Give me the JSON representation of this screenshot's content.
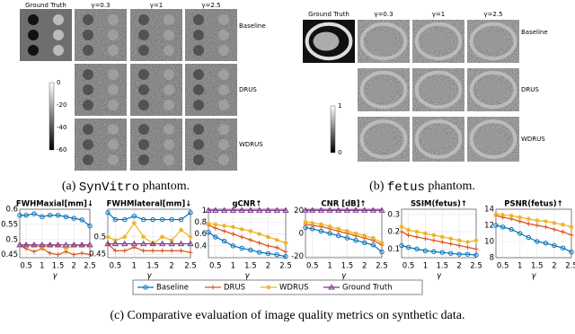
{
  "figure": {
    "panel_a": {
      "columns": [
        "Ground Truth",
        "γ=0.3",
        "γ=1",
        "γ=2.5"
      ],
      "rows": [
        "Baseline",
        "DRUS",
        "WDRUS"
      ],
      "colorbar_ticks": [
        0,
        -20,
        -40,
        -60
      ],
      "caption": {
        "label": "(a)",
        "name": "SynVitro",
        "text": "phantom."
      }
    },
    "panel_b": {
      "columns": [
        "Ground Truth",
        "γ=0.3",
        "γ=1",
        "γ=2.5"
      ],
      "rows": [
        "Baseline",
        "DRUS",
        "WDRUS"
      ],
      "colorbar_ticks": [
        1,
        0
      ],
      "caption": {
        "label": "(b)",
        "name": "fetus",
        "text": "phantom."
      }
    },
    "caption_c": "(c) Comparative evaluation of image quality metrics on synthetic data."
  },
  "chart_data": [
    {
      "type": "line",
      "title": "FWHMaxial[mm]↓",
      "xlabel": "γ",
      "x": [
        0.3,
        0.5,
        0.75,
        1,
        1.25,
        1.5,
        1.75,
        2,
        2.25,
        2.5
      ],
      "xlim": [
        0.3,
        2.5
      ],
      "xticks": [
        0.5,
        1,
        1.5,
        2,
        2.5
      ],
      "ylim": [
        0.44,
        0.6
      ],
      "yticks": [
        0.45,
        0.5,
        0.55,
        0.6
      ],
      "grid": true,
      "series": [
        {
          "name": "Baseline",
          "color": "#0072bd",
          "values": [
            0.58,
            0.58,
            0.585,
            0.575,
            0.58,
            0.58,
            0.575,
            0.57,
            0.565,
            0.545
          ]
        },
        {
          "name": "DRUS",
          "color": "#d95319",
          "values": [
            0.48,
            0.47,
            0.46,
            0.47,
            0.455,
            0.45,
            0.46,
            0.45,
            0.455,
            0.45
          ]
        },
        {
          "name": "WDRUS",
          "color": "#edb120",
          "values": [
            0.48,
            0.48,
            0.48,
            0.475,
            0.48,
            0.48,
            0.47,
            0.48,
            0.48,
            0.48
          ]
        },
        {
          "name": "Ground Truth",
          "color": "#7e2f8e",
          "values": [
            0.482,
            0.482,
            0.482,
            0.482,
            0.482,
            0.482,
            0.482,
            0.482,
            0.482,
            0.482
          ]
        }
      ]
    },
    {
      "type": "line",
      "title": "FWHMlateral[mm]↓",
      "xlabel": "γ",
      "x": [
        0.3,
        0.5,
        0.75,
        1,
        1.25,
        1.5,
        1.75,
        2,
        2.25,
        2.5
      ],
      "xlim": [
        0.3,
        2.5
      ],
      "xticks": [
        0.5,
        1,
        1.5,
        2,
        2.5
      ],
      "ylim": [
        0.44,
        0.58
      ],
      "yticks": [
        0.45,
        0.5
      ],
      "grid": true,
      "series": [
        {
          "color": "#0072bd",
          "values": [
            0.57,
            0.55,
            0.55,
            0.56,
            0.55,
            0.55,
            0.55,
            0.55,
            0.55,
            0.57
          ]
        },
        {
          "color": "#d95319",
          "values": [
            0.48,
            0.46,
            0.46,
            0.47,
            0.46,
            0.46,
            0.46,
            0.46,
            0.46,
            0.455
          ]
        },
        {
          "color": "#edb120",
          "values": [
            0.5,
            0.49,
            0.5,
            0.54,
            0.5,
            0.48,
            0.5,
            0.49,
            0.52,
            0.5
          ]
        },
        {
          "color": "#7e2f8e",
          "values": [
            0.48,
            0.48,
            0.48,
            0.48,
            0.48,
            0.48,
            0.48,
            0.48,
            0.48,
            0.48
          ]
        }
      ]
    },
    {
      "type": "line",
      "title": "gCNR↑",
      "xlabel": "γ",
      "x": [
        0.3,
        0.5,
        0.75,
        1,
        1.25,
        1.5,
        1.75,
        2,
        2.25,
        2.5
      ],
      "xlim": [
        0.3,
        2.5
      ],
      "xticks": [
        0.5,
        1,
        1.5,
        2,
        2.5
      ],
      "ylim": [
        0.2,
        1.02
      ],
      "yticks": [
        0.4,
        0.6,
        0.8,
        1
      ],
      "grid": true,
      "series": [
        {
          "color": "#0072bd",
          "values": [
            0.63,
            0.55,
            0.48,
            0.4,
            0.36,
            0.33,
            0.29,
            0.27,
            0.25,
            0.22
          ]
        },
        {
          "color": "#d95319",
          "values": [
            0.75,
            0.7,
            0.65,
            0.6,
            0.55,
            0.5,
            0.45,
            0.4,
            0.37,
            0.3
          ]
        },
        {
          "color": "#edb120",
          "values": [
            0.78,
            0.76,
            0.74,
            0.72,
            0.68,
            0.65,
            0.6,
            0.55,
            0.5,
            0.45
          ]
        },
        {
          "color": "#7e2f8e",
          "values": [
            1,
            1,
            1,
            1,
            1,
            1,
            1,
            1,
            1,
            1
          ]
        }
      ]
    },
    {
      "type": "line",
      "title": "CNR [dB]↑",
      "xlabel": "γ",
      "x": [
        0.3,
        0.5,
        0.75,
        1,
        1.25,
        1.5,
        1.75,
        2,
        2.25,
        2.5
      ],
      "xlim": [
        0.3,
        2.5
      ],
      "xticks": [
        0.5,
        1,
        1.5,
        2,
        2.5
      ],
      "ylim": [
        -21,
        21
      ],
      "yticks": [
        -20,
        0,
        20
      ],
      "grid": true,
      "series": [
        {
          "color": "#0072bd",
          "values": [
            5,
            4,
            2,
            0,
            -2,
            -4,
            -6,
            -8,
            -10,
            -16
          ]
        },
        {
          "color": "#d95319",
          "values": [
            8,
            7,
            6,
            4,
            2,
            0,
            -2,
            -4,
            -6,
            -10
          ]
        },
        {
          "color": "#edb120",
          "values": [
            10,
            9,
            8,
            6,
            4,
            2,
            0,
            -2,
            -4,
            -8
          ]
        },
        {
          "color": "#7e2f8e",
          "values": [
            20,
            20,
            20,
            20,
            20,
            20,
            20,
            20,
            20,
            20
          ]
        }
      ]
    },
    {
      "type": "line",
      "title": "SSIM(fetus)↑",
      "xlabel": "γ",
      "x": [
        0.3,
        0.5,
        0.75,
        1,
        1.25,
        1.5,
        1.75,
        2,
        2.25,
        2.5
      ],
      "xlim": [
        0.3,
        2.5
      ],
      "xticks": [
        0.5,
        1,
        1.5,
        2,
        2.5
      ],
      "ylim": [
        0.05,
        0.33
      ],
      "yticks": [
        0.1,
        0.2,
        0.3
      ],
      "grid": true,
      "series": [
        {
          "color": "#0072bd",
          "values": [
            0.12,
            0.11,
            0.1,
            0.09,
            0.085,
            0.08,
            0.075,
            0.07,
            0.07,
            0.065
          ]
        },
        {
          "color": "#d95319",
          "values": [
            0.2,
            0.18,
            0.17,
            0.16,
            0.15,
            0.14,
            0.13,
            0.12,
            0.11,
            0.1
          ]
        },
        {
          "color": "#edb120",
          "values": [
            0.23,
            0.21,
            0.2,
            0.19,
            0.18,
            0.17,
            0.16,
            0.15,
            0.14,
            0.15
          ]
        }
      ]
    },
    {
      "type": "line",
      "title": "PSNR(fetus)↑",
      "xlabel": "γ",
      "x": [
        0.3,
        0.5,
        0.75,
        1,
        1.25,
        1.5,
        1.75,
        2,
        2.25,
        2.5
      ],
      "xlim": [
        0.3,
        2.5
      ],
      "xticks": [
        0.5,
        1,
        1.5,
        2,
        2.5
      ],
      "ylim": [
        8,
        14
      ],
      "yticks": [
        8,
        10,
        12,
        14
      ],
      "grid": true,
      "series": [
        {
          "color": "#0072bd",
          "values": [
            12,
            11.8,
            11.5,
            11,
            10.5,
            10,
            9.8,
            9.5,
            9.2,
            8.7
          ]
        },
        {
          "color": "#d95319",
          "values": [
            13.2,
            13,
            12.8,
            12.5,
            12.2,
            12,
            11.8,
            11.5,
            11.2,
            10.8
          ]
        },
        {
          "color": "#edb120",
          "values": [
            13.4,
            13.3,
            13.2,
            13,
            12.8,
            12.6,
            12.5,
            12.3,
            12.1,
            11.8
          ]
        }
      ]
    }
  ]
}
